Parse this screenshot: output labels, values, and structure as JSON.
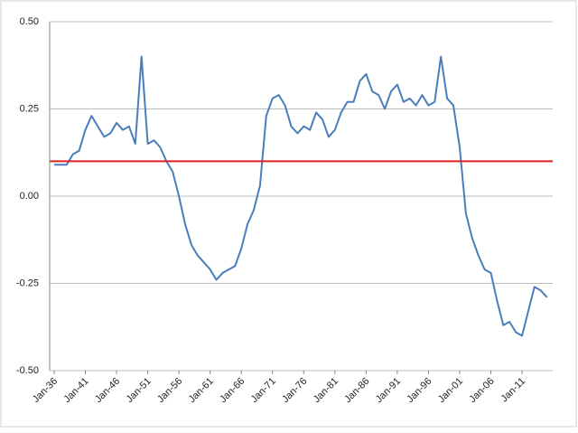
{
  "chart_data": {
    "type": "line",
    "categories": [
      "Jan-36",
      null,
      null,
      null,
      null,
      "Jan-41",
      null,
      null,
      null,
      null,
      "Jan-46",
      null,
      null,
      null,
      null,
      "Jan-51",
      null,
      null,
      null,
      null,
      "Jan-56",
      null,
      null,
      null,
      null,
      "Jan-61",
      null,
      null,
      null,
      null,
      "Jan-66",
      null,
      null,
      null,
      null,
      "Jan-71",
      null,
      null,
      null,
      null,
      "Jan-76",
      null,
      null,
      null,
      null,
      "Jan-81",
      null,
      null,
      null,
      null,
      "Jan-86",
      null,
      null,
      null,
      null,
      "Jan-91",
      null,
      null,
      null,
      null,
      "Jan-96",
      null,
      null,
      null,
      null,
      "Jan-01",
      null,
      null,
      null,
      null,
      "Jan-06",
      null,
      null,
      null,
      null,
      "Jan-11",
      null,
      null,
      null,
      null
    ],
    "series": [
      {
        "color": "#4a7ebb",
        "values": [
          0.09,
          0.09,
          0.09,
          0.12,
          0.13,
          0.19,
          0.23,
          0.2,
          0.17,
          0.18,
          0.21,
          0.19,
          0.2,
          0.15,
          0.4,
          0.15,
          0.16,
          0.14,
          0.1,
          0.07,
          0.0,
          -0.08,
          -0.14,
          -0.17,
          -0.19,
          -0.21,
          -0.24,
          -0.22,
          -0.21,
          -0.2,
          -0.15,
          -0.08,
          -0.04,
          0.03,
          0.23,
          0.28,
          0.29,
          0.26,
          0.2,
          0.18,
          0.2,
          0.19,
          0.24,
          0.22,
          0.17,
          0.19,
          0.24,
          0.27,
          0.27,
          0.33,
          0.35,
          0.3,
          0.29,
          0.25,
          0.3,
          0.32,
          0.27,
          0.28,
          0.26,
          0.29,
          0.26,
          0.27,
          0.4,
          0.28,
          0.26,
          0.14,
          -0.05,
          -0.12,
          -0.17,
          -0.21,
          -0.22,
          -0.3,
          -0.37,
          -0.36,
          -0.39,
          -0.4,
          -0.33,
          -0.26,
          -0.27,
          -0.29
        ]
      }
    ],
    "reference_line": {
      "value": 0.1,
      "color": "#e02020"
    },
    "ylim": [
      -0.5,
      0.5
    ],
    "yticks": [
      {
        "value": -0.5,
        "label": "-0.50"
      },
      {
        "value": -0.25,
        "label": "-0.25"
      },
      {
        "value": 0,
        "label": "0.00"
      },
      {
        "value": 0.25,
        "label": "0.25"
      },
      {
        "value": 0.5,
        "label": "0.50"
      }
    ],
    "grid": true
  }
}
